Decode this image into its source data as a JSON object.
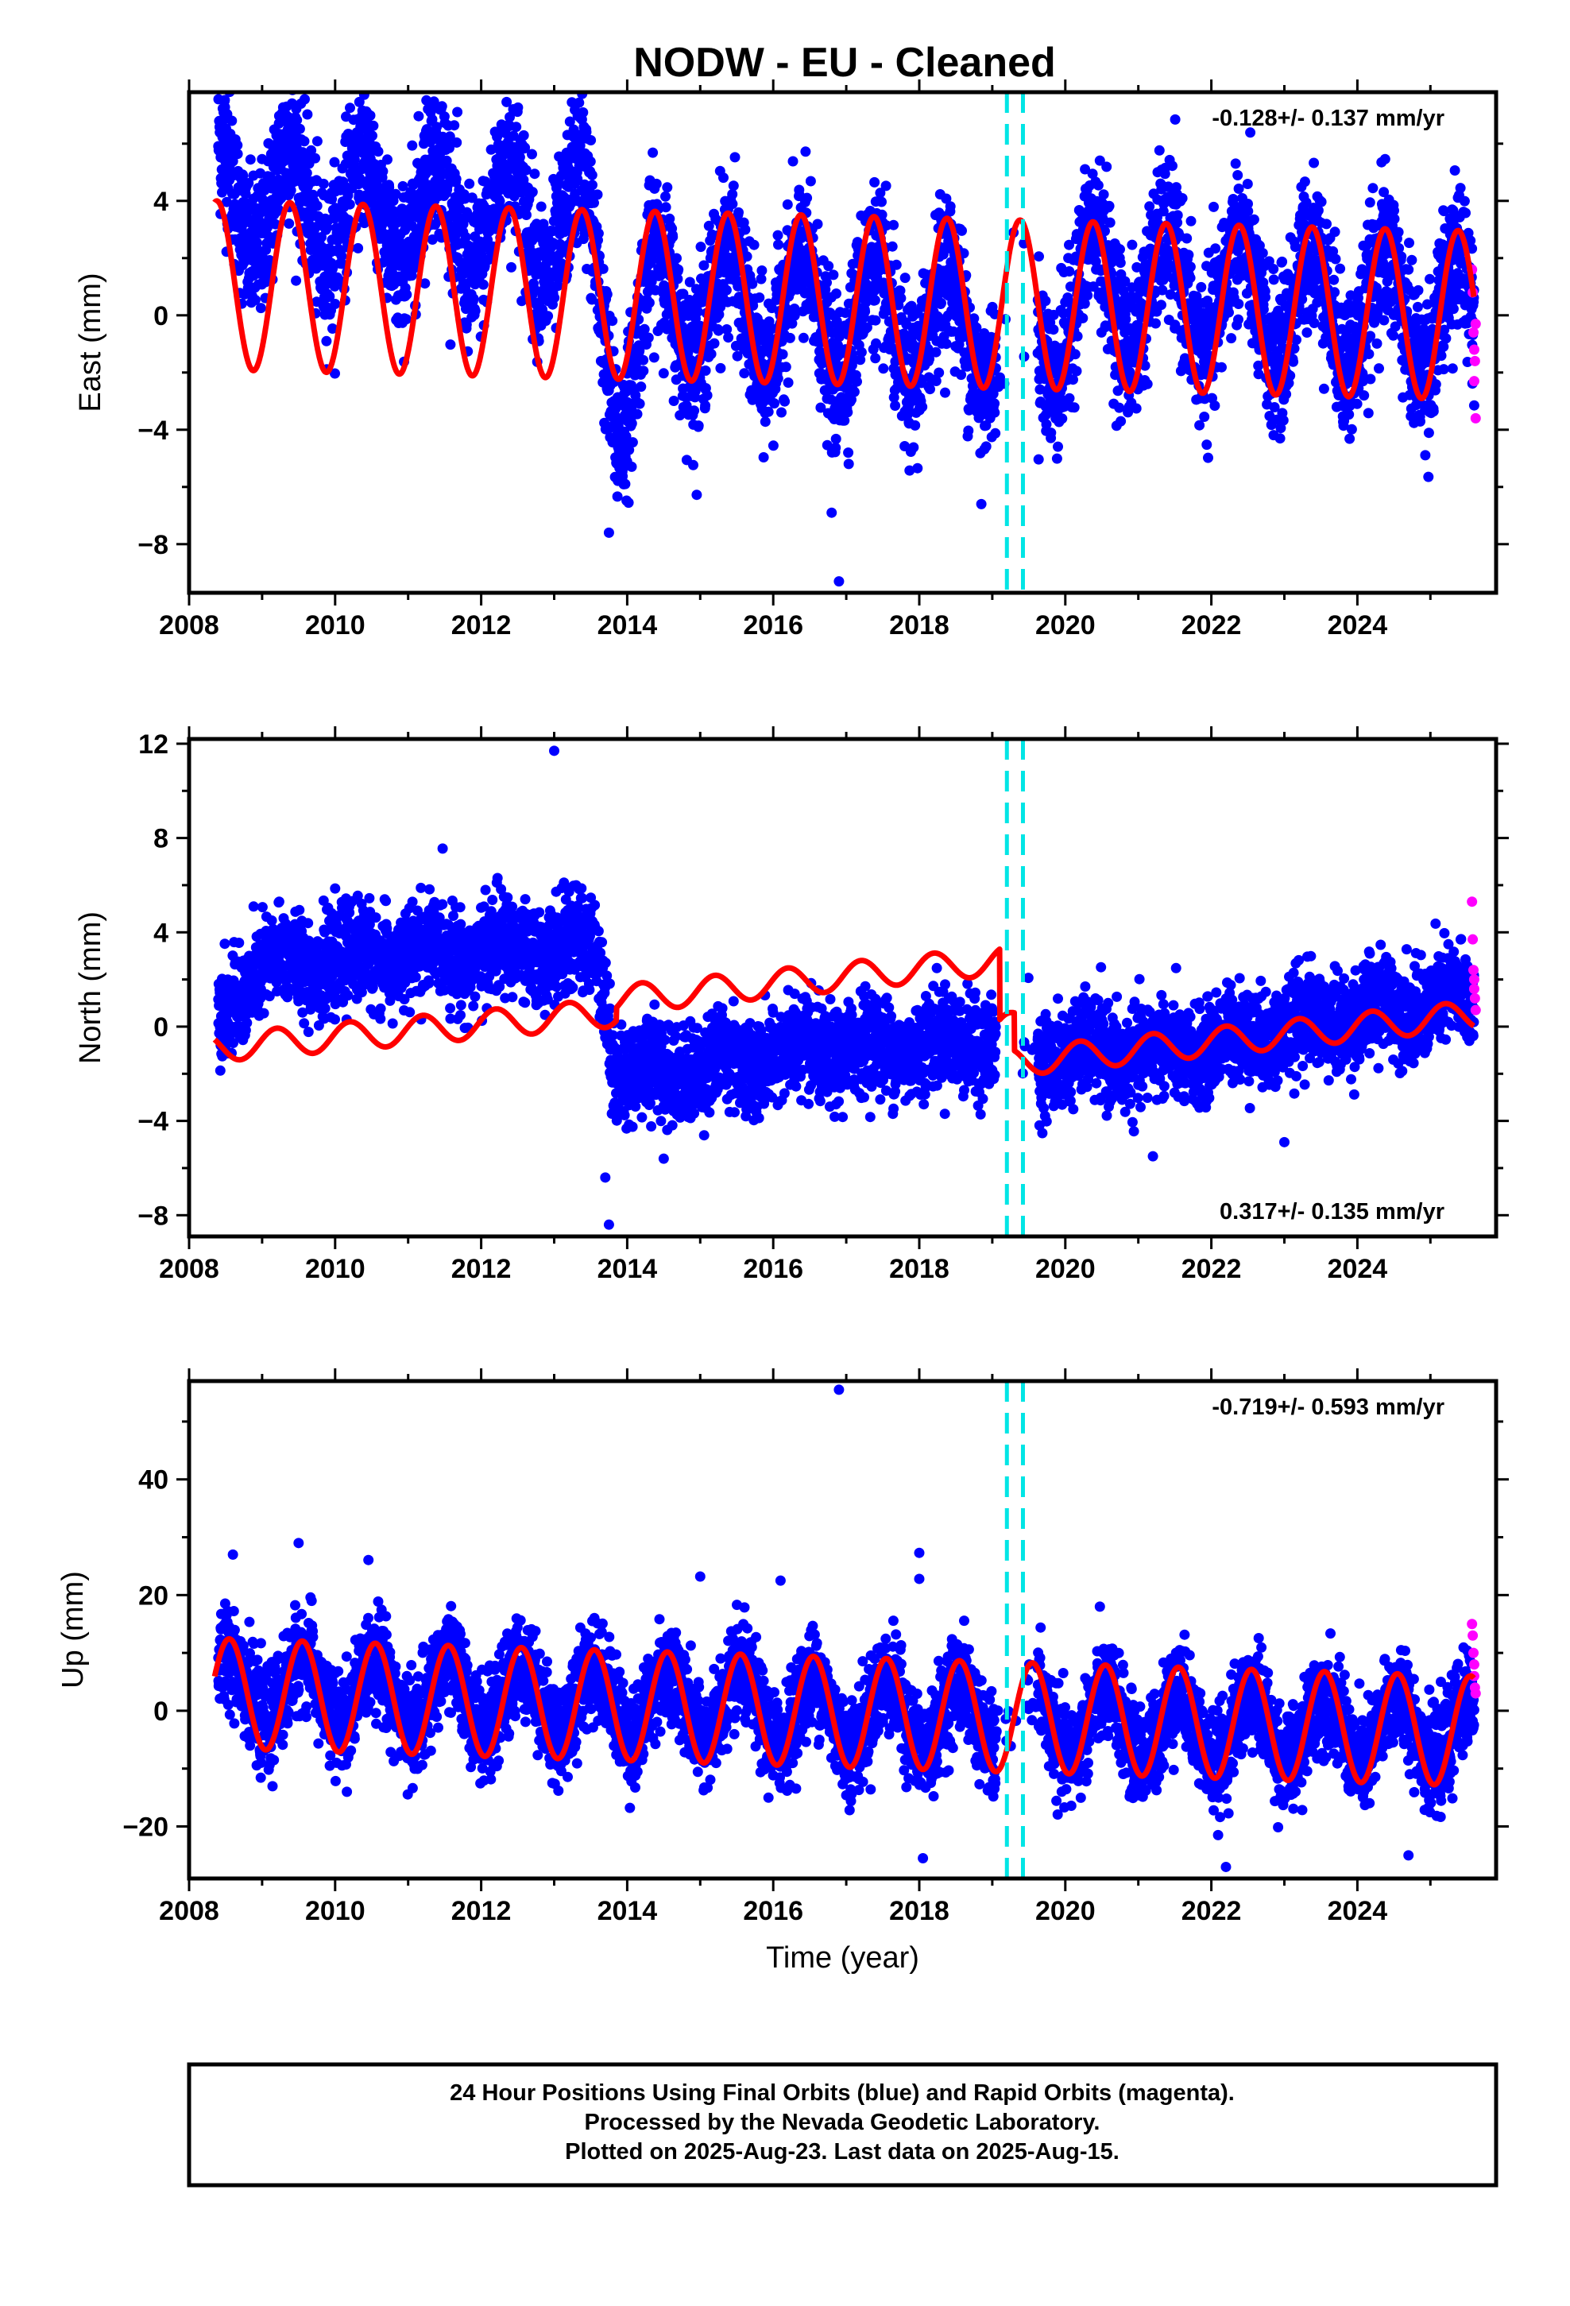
{
  "title": "NODW  - EU - Cleaned",
  "footer": {
    "line1": "24 Hour Positions Using Final Orbits (blue) and Rapid Orbits (magenta).",
    "line2": "Processed by the Nevada Geodetic Laboratory.",
    "line3": "Plotted on 2025-Aug-23. Last data on 2025-Aug-15."
  },
  "colors": {
    "final_orbits": "#0000ff",
    "rapid_orbits": "#ff00ff",
    "model": "#ff0000",
    "offsets": "#00e5e5"
  },
  "chart_data": [
    {
      "type": "scatter",
      "ylabel": "East (mm)",
      "xlabel": "",
      "xlim": [
        2008.0,
        2025.9
      ],
      "ylim": [
        -9.7,
        7.8
      ],
      "xticks": [
        2008,
        2010,
        2012,
        2014,
        2016,
        2018,
        2020,
        2022,
        2024
      ],
      "yticks": [
        -8,
        -4,
        0,
        4
      ],
      "rate_label": "-0.128+/- 0.137 mm/yr",
      "rate_position": "top-right",
      "offsets": [
        2019.2,
        2019.42
      ],
      "series": [
        {
          "color": "#0000ff",
          "mean": [
            [
              2008.4,
              4.3
            ],
            [
              2009.4,
              4.0
            ],
            [
              2010.4,
              3.8
            ],
            [
              2011.4,
              3.6
            ],
            [
              2012.4,
              3.4
            ],
            [
              2013.4,
              3.2
            ],
            [
              2013.9,
              -2.6
            ],
            [
              2014.4,
              0.6
            ],
            [
              2015.4,
              0.3
            ],
            [
              2016.4,
              0.0
            ],
            [
              2017.4,
              -0.2
            ],
            [
              2018.4,
              -0.4
            ],
            [
              2018.9,
              -0.4
            ],
            [
              2019.7,
              -0.6
            ],
            [
              2020.4,
              1.0
            ],
            [
              2021.4,
              0.8
            ],
            [
              2022.4,
              0.6
            ],
            [
              2023.4,
              0.4
            ],
            [
              2024.4,
              0.2
            ],
            [
              2025.6,
              0.0
            ]
          ],
          "amplitude": 2.9,
          "noise": 1.3,
          "phase": 0.38,
          "density": 0.9
        },
        {
          "color": "#ff00ff",
          "points": [
            [
              2025.57,
              1.6
            ],
            [
              2025.58,
              0.8
            ],
            [
              2025.59,
              -0.6
            ],
            [
              2025.6,
              -1.2
            ],
            [
              2025.6,
              -2.3
            ],
            [
              2025.61,
              -1.6
            ],
            [
              2025.62,
              -3.6
            ],
            [
              2025.62,
              -0.3
            ]
          ]
        }
      ],
      "model": {
        "color": "#ff0000",
        "xrange": [
          2008.35,
          2025.6
        ],
        "trend": [
          [
            2008.35,
            1.05
          ],
          [
            2025.6,
            0.0
          ]
        ],
        "amplitude": 2.95,
        "phase": 0.38,
        "gaps": []
      },
      "outliers": [
        [
          2016.9,
          -9.3
        ],
        [
          2013.75,
          -7.6
        ],
        [
          2016.8,
          -6.9
        ],
        [
          2018.85,
          -6.6
        ]
      ]
    },
    {
      "type": "scatter",
      "ylabel": "North (mm)",
      "xlabel": "",
      "xlim": [
        2008.0,
        2025.9
      ],
      "ylim": [
        -8.9,
        12.2
      ],
      "xticks": [
        2008,
        2010,
        2012,
        2014,
        2016,
        2018,
        2020,
        2022,
        2024
      ],
      "yticks": [
        -8,
        -4,
        0,
        4,
        8,
        12
      ],
      "rate_label": "0.317+/- 0.135 mm/yr",
      "rate_position": "bottom-right",
      "offsets": [
        2019.2,
        2019.42
      ],
      "series": [
        {
          "color": "#0000ff",
          "mean": [
            [
              2008.4,
              0.3
            ],
            [
              2009.0,
              2.6
            ],
            [
              2011.0,
              3.0
            ],
            [
              2013.6,
              3.4
            ],
            [
              2013.85,
              -2.0
            ],
            [
              2014.5,
              -1.9
            ],
            [
              2016.5,
              -1.1
            ],
            [
              2018.9,
              -0.6
            ],
            [
              2019.7,
              -1.2
            ],
            [
              2021.5,
              -1.2
            ],
            [
              2023.0,
              -0.1
            ],
            [
              2024.5,
              0.8
            ],
            [
              2025.6,
              1.2
            ]
          ],
          "amplitude": 0.6,
          "noise": 1.0,
          "phase": 0.3,
          "density": 0.9
        },
        {
          "color": "#ff00ff",
          "points": [
            [
              2025.57,
              5.3
            ],
            [
              2025.58,
              3.7
            ],
            [
              2025.59,
              2.4
            ],
            [
              2025.6,
              2.0
            ],
            [
              2025.6,
              1.6
            ],
            [
              2025.61,
              1.2
            ],
            [
              2025.62,
              0.7
            ]
          ]
        }
      ],
      "model": {
        "color": "#ff0000",
        "xrange": [
          2008.35,
          2025.6
        ],
        "trend": [
          [
            2008.35,
            -0.9
          ],
          [
            2013.85,
            0.6
          ],
          [
            2013.851,
            1.15
          ],
          [
            2019.1,
            2.8
          ],
          [
            2019.101,
            -0.2
          ],
          [
            2019.3,
            0.1
          ],
          [
            2019.301,
            -1.5
          ],
          [
            2025.6,
            0.5
          ]
        ],
        "amplitude": 0.6,
        "phase": 0.2,
        "gaps": []
      },
      "outliers": [
        [
          2013.0,
          11.7
        ],
        [
          2013.75,
          -8.4
        ],
        [
          2013.7,
          -6.4
        ],
        [
          2021.2,
          -5.5
        ],
        [
          2023.0,
          -4.9
        ],
        [
          2014.5,
          -5.6
        ]
      ]
    },
    {
      "type": "scatter",
      "ylabel": "Up (mm)",
      "xlabel": "Time (year)",
      "xlim": [
        2008.0,
        2025.9
      ],
      "ylim": [
        -29,
        57
      ],
      "xticks": [
        2008,
        2010,
        2012,
        2014,
        2016,
        2018,
        2020,
        2022,
        2024
      ],
      "yticks": [
        -20,
        0,
        20,
        40
      ],
      "rate_label": "-0.719+/- 0.593 mm/yr",
      "rate_position": "top-right",
      "offsets": [
        2019.2,
        2019.42
      ],
      "series": [
        {
          "color": "#0000ff",
          "mean": [
            [
              2008.4,
              4.0
            ],
            [
              2009.5,
              3.5
            ],
            [
              2012.0,
              2.5
            ],
            [
              2015.0,
              1.0
            ],
            [
              2017.0,
              -0.5
            ],
            [
              2018.9,
              -1.5
            ],
            [
              2019.7,
              -2.0
            ],
            [
              2022.0,
              -3.0
            ],
            [
              2025.6,
              -3.5
            ]
          ],
          "amplitude": 8.5,
          "noise": 4.2,
          "phase": 0.55,
          "density": 0.9
        },
        {
          "color": "#ff00ff",
          "points": [
            [
              2025.57,
              15
            ],
            [
              2025.58,
              13
            ],
            [
              2025.59,
              10
            ],
            [
              2025.6,
              8
            ],
            [
              2025.6,
              6
            ],
            [
              2025.61,
              4
            ],
            [
              2025.62,
              3
            ]
          ]
        }
      ],
      "model": {
        "color": "#ff0000",
        "xrange": [
          2008.35,
          2025.6
        ],
        "trend": [
          [
            2008.35,
            3.0
          ],
          [
            2025.6,
            -3.5
          ]
        ],
        "amplitude": 9.5,
        "phase": 0.55,
        "gaps": []
      },
      "outliers": [
        [
          2016.9,
          55.5
        ],
        [
          2018.0,
          27.3
        ],
        [
          2018.0,
          22.8
        ],
        [
          2015.0,
          23.2
        ],
        [
          2016.1,
          22.5
        ],
        [
          2008.6,
          27
        ],
        [
          2009.5,
          29
        ],
        [
          2018.05,
          -25.5
        ],
        [
          2022.2,
          -27
        ],
        [
          2024.7,
          -25
        ]
      ]
    }
  ]
}
